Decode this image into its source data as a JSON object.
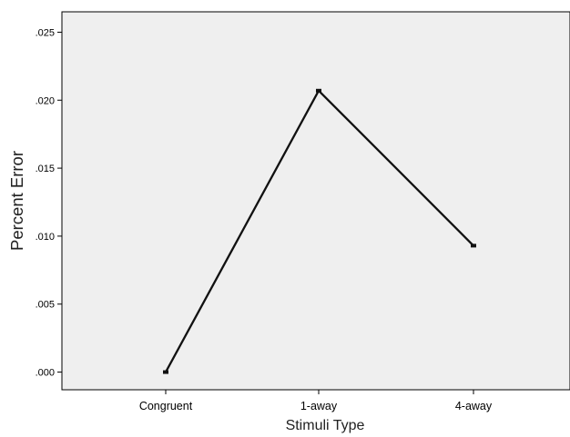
{
  "chart_data": {
    "type": "line",
    "title": "",
    "xlabel": "Stimuli Type",
    "ylabel": "Percent Error",
    "categories": [
      "Congruent",
      "1-away",
      "4-away"
    ],
    "series": [
      {
        "values": [
          0.0,
          0.0207,
          0.0093
        ]
      }
    ],
    "ylim": [
      -0.0013,
      0.0265
    ],
    "yticks": [
      0.0,
      0.005,
      0.01,
      0.015,
      0.02,
      0.025
    ],
    "ytick_labels": [
      ".000",
      ".005",
      ".010",
      ".015",
      ".020",
      ".025"
    ],
    "grid": false,
    "legend": "none",
    "colors": {
      "plot_background": "#efefef",
      "line": "#111111",
      "axis": "#000000"
    }
  }
}
